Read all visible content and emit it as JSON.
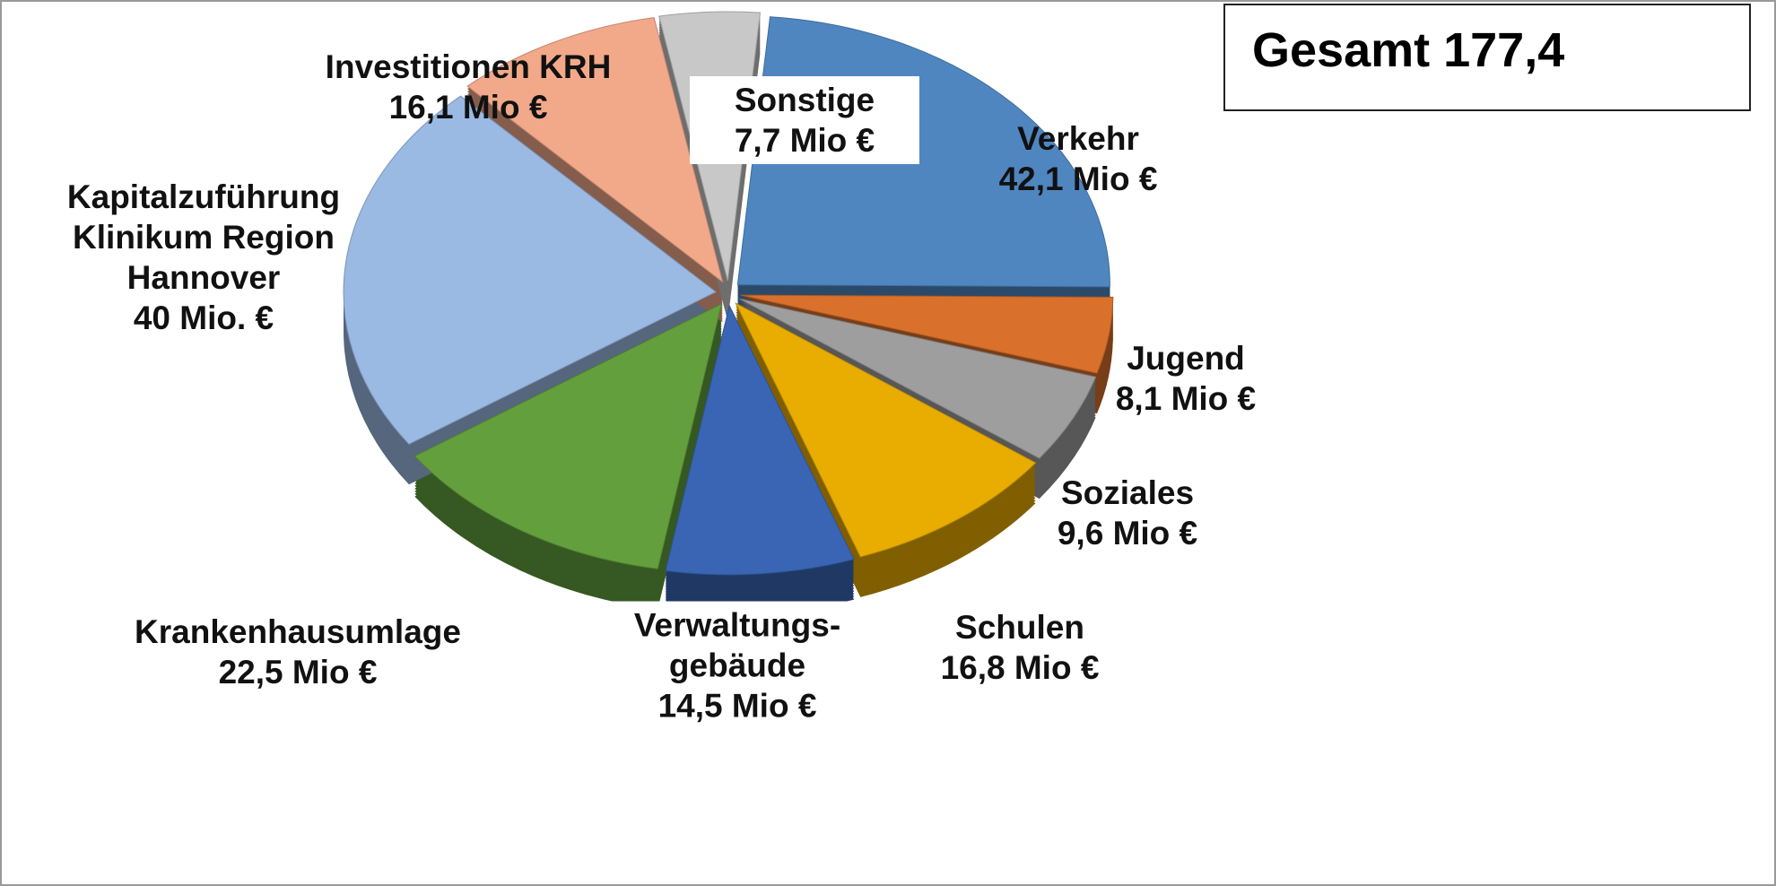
{
  "chart_data": {
    "type": "pie",
    "title": "Gesamt 177,4",
    "categories": [
      "Verkehr",
      "Jugend",
      "Soziales",
      "Schulen",
      "Verwaltungs-gebäude",
      "Krankenhausumlage",
      "Kapitalzuführung Klinikum Region Hannover",
      "Investitionen KRH",
      "Sonstige"
    ],
    "values": [
      42.1,
      8.1,
      9.6,
      16.8,
      14.5,
      22.5,
      40,
      16.1,
      7.7
    ],
    "value_labels": [
      "42,1 Mio €",
      "8,1 Mio €",
      "9,6 Mio €",
      "16,8 Mio €",
      "14,5 Mio €",
      "22,5 Mio €",
      "40 Mio. €",
      "16,1 Mio €",
      "7,7 Mio €"
    ],
    "colors": [
      "#4f86c0",
      "#d9702c",
      "#9e9e9e",
      "#e8ad00",
      "#3a65b5",
      "#63a03d",
      "#9ab9e3",
      "#f2a98a",
      "#c8c8c8"
    ]
  }
}
